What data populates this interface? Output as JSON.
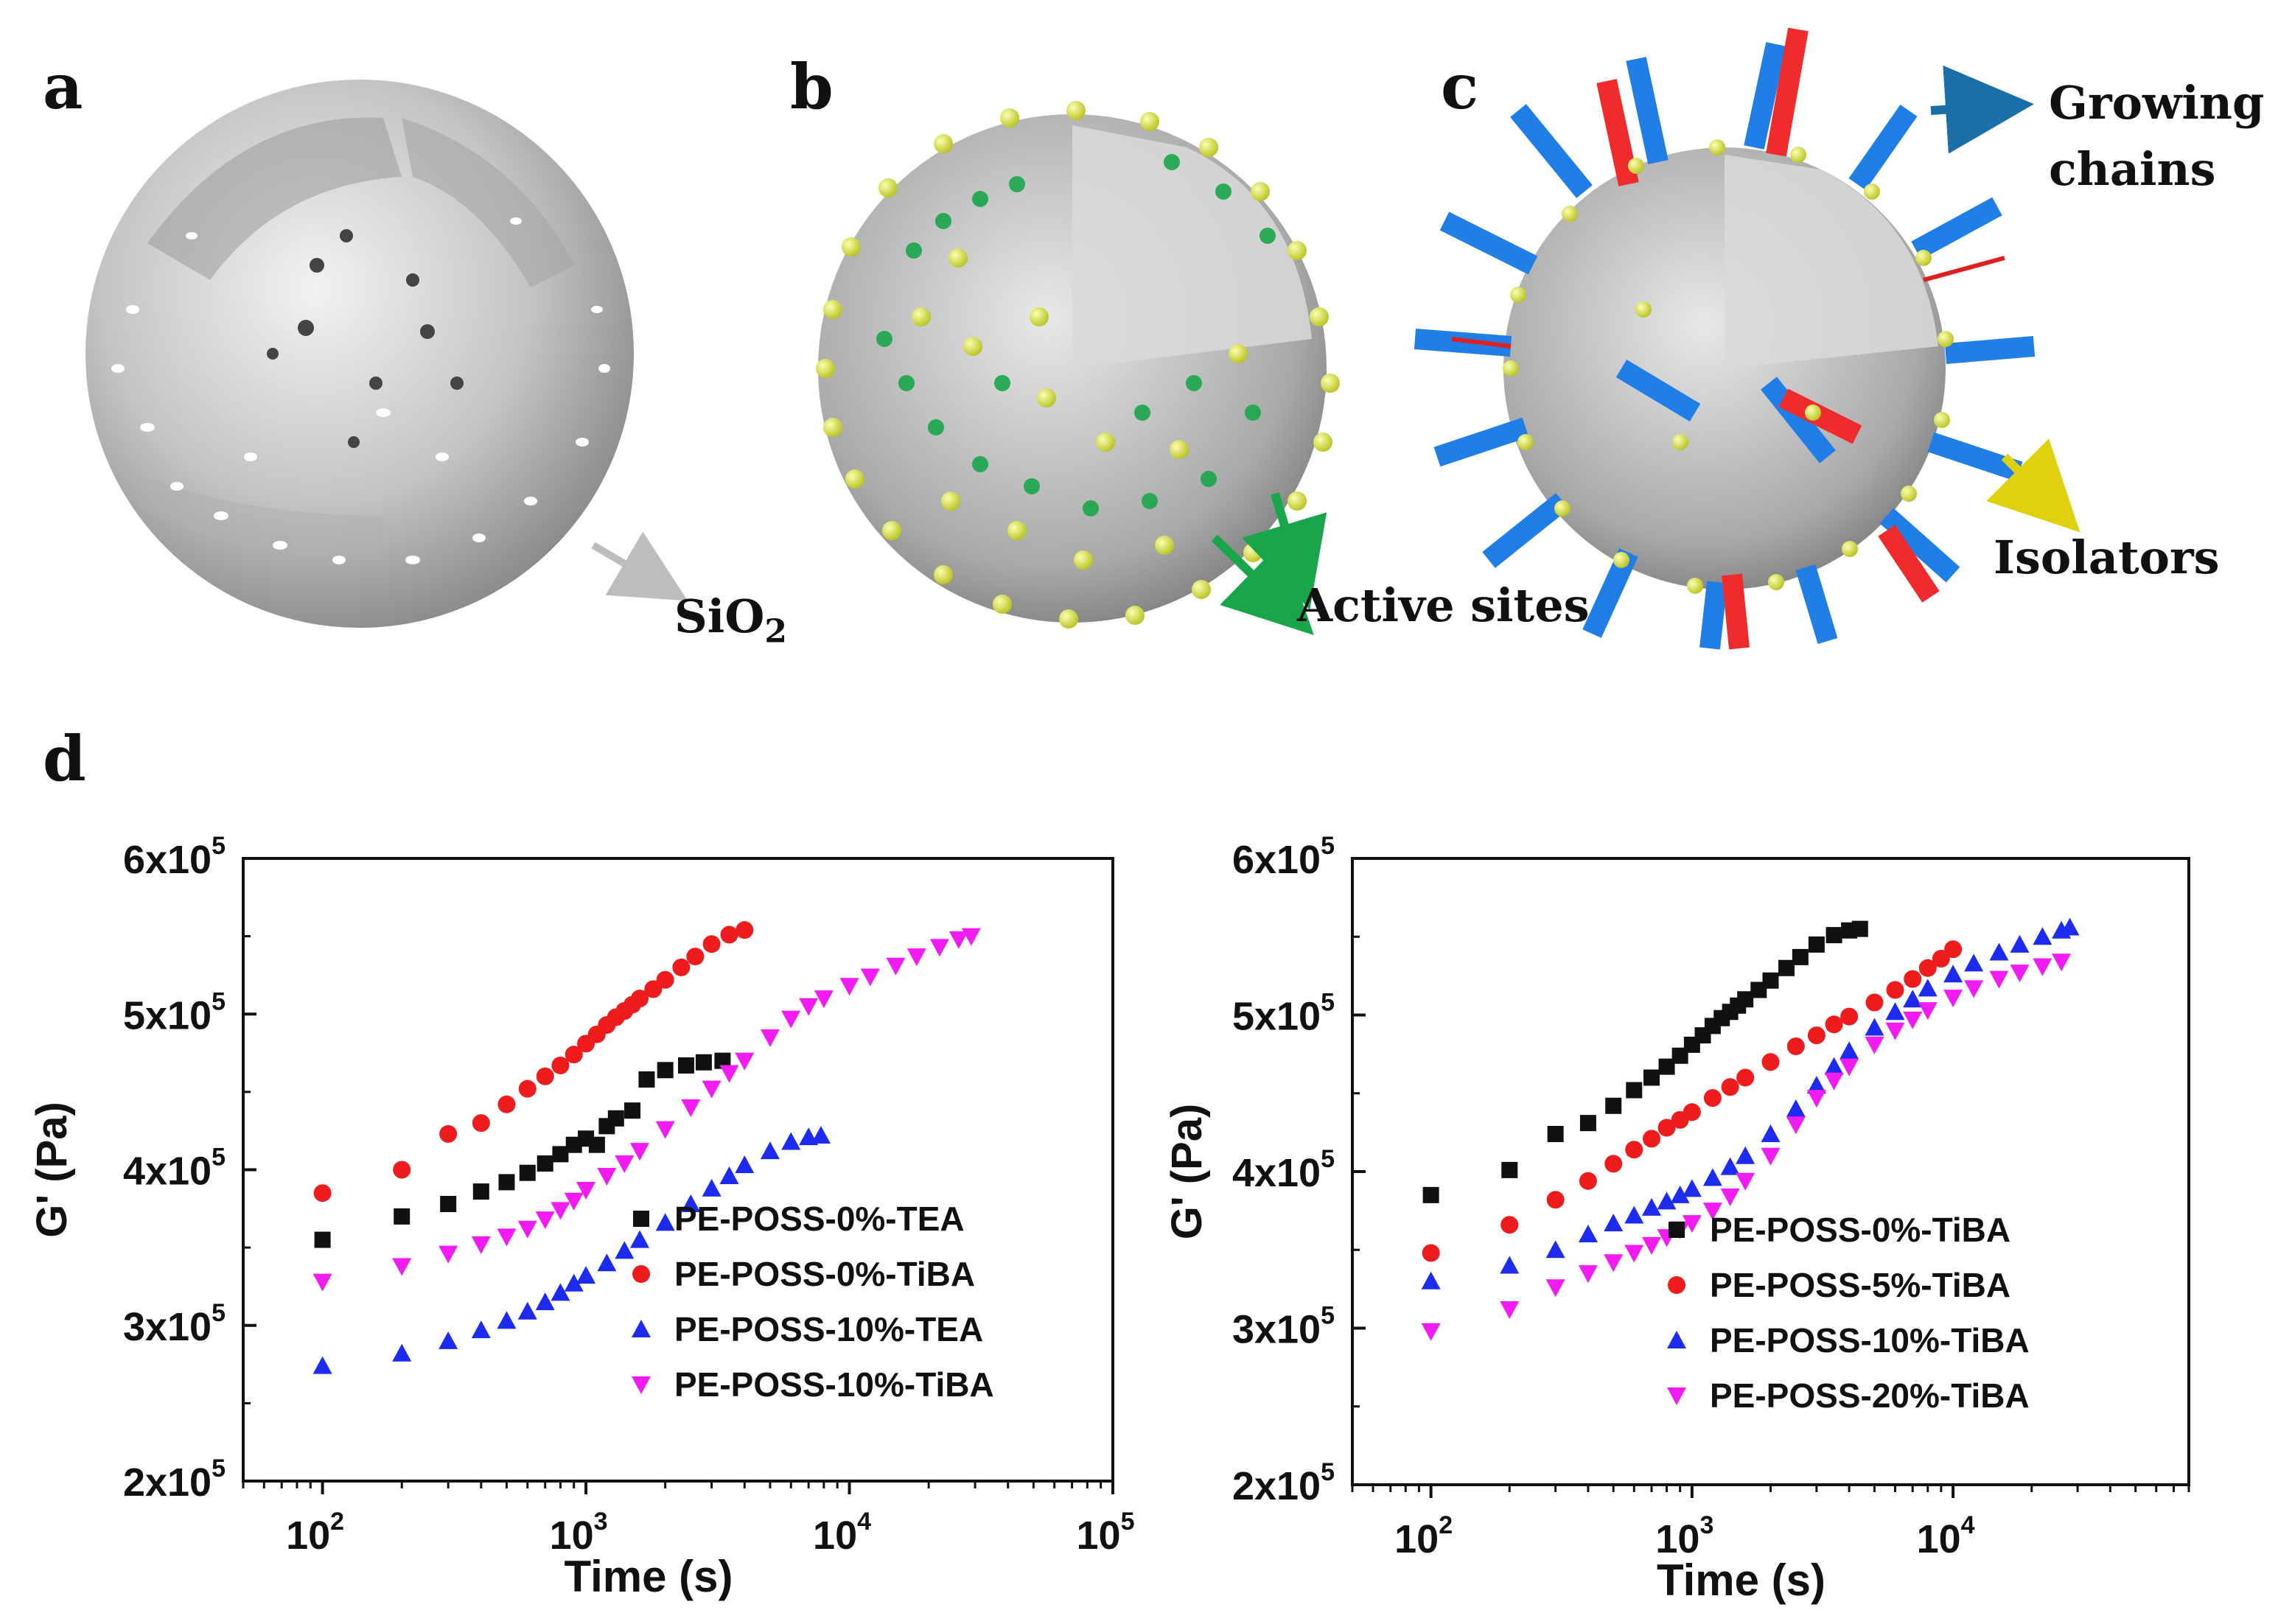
{
  "panels": {
    "a": {
      "letter": "a",
      "label": "SiO",
      "label_sub": "2"
    },
    "b": {
      "letter": "b",
      "label": "Active sites"
    },
    "c": {
      "letter": "c",
      "label_line1": "Growing",
      "label_line2": "chains",
      "label2": "Isolators"
    },
    "d": {
      "letter": "d"
    }
  },
  "colors": {
    "black": "#111111",
    "red": "#ee1c1c",
    "blue": "#1d2bf0",
    "magenta": "#f21bf2",
    "sphere": "#c9c9c9",
    "yellow_site": "#e2ee4a",
    "green_site": "#1aa35a",
    "chain_blue": "#1f7fe6",
    "chain_red": "#f02b2b"
  },
  "chart_data": [
    {
      "type": "scatter",
      "xscale": "log",
      "xlabel": "Time (s)",
      "ylabel": "G' (Pa)",
      "xlim": [
        50,
        100000
      ],
      "ylim": [
        200000,
        600000
      ],
      "x_ticks": [
        {
          "v": 100,
          "base": "10",
          "exp": "2"
        },
        {
          "v": 1000,
          "base": "10",
          "exp": "3"
        },
        {
          "v": 10000,
          "base": "10",
          "exp": "4"
        },
        {
          "v": 100000,
          "base": "10",
          "exp": "5"
        }
      ],
      "y_ticks": [
        {
          "v": 200000,
          "base": "2x10",
          "exp": "5"
        },
        {
          "v": 300000,
          "base": "3x10",
          "exp": "5"
        },
        {
          "v": 400000,
          "base": "4x10",
          "exp": "5"
        },
        {
          "v": 500000,
          "base": "5x10",
          "exp": "5"
        },
        {
          "v": 600000,
          "base": "6x10",
          "exp": "5"
        }
      ],
      "legend_position": "bottom-right",
      "series": [
        {
          "name": "PE-POSS-0%-TEA",
          "marker": "square",
          "color": "#111111",
          "x": [
            100,
            200,
            300,
            400,
            500,
            600,
            700,
            800,
            900,
            1000,
            1100,
            1200,
            1300,
            1500,
            1700,
            2000,
            2400,
            2800,
            3300
          ],
          "y": [
            355000,
            370000,
            378000,
            386000,
            392000,
            398000,
            404000,
            410000,
            416000,
            420000,
            416000,
            428000,
            433000,
            438000,
            458000,
            464000,
            467000,
            469000,
            470000
          ]
        },
        {
          "name": "PE-POSS-0%-TiBA",
          "marker": "circle",
          "color": "#ee1c1c",
          "x": [
            100,
            200,
            300,
            400,
            500,
            600,
            700,
            800,
            900,
            1000,
            1100,
            1200,
            1300,
            1400,
            1500,
            1600,
            1800,
            2000,
            2300,
            2600,
            3000,
            3500,
            4000
          ],
          "y": [
            385000,
            400000,
            423000,
            430000,
            442000,
            452000,
            460000,
            467000,
            474000,
            481000,
            487000,
            493000,
            498000,
            502000,
            506000,
            510000,
            516000,
            522000,
            530000,
            537000,
            545000,
            551000,
            554000
          ]
        },
        {
          "name": "PE-POSS-10%-TEA",
          "marker": "triangle-up",
          "color": "#1d2bf0",
          "x": [
            100,
            200,
            300,
            400,
            500,
            600,
            700,
            800,
            900,
            1000,
            1200,
            1400,
            1600,
            2000,
            2500,
            3000,
            3500,
            4000,
            5000,
            6000,
            7000,
            7800
          ],
          "y": [
            274000,
            282000,
            290000,
            297000,
            303000,
            309000,
            315000,
            321000,
            327000,
            332000,
            340000,
            348000,
            355000,
            366000,
            378000,
            388000,
            396000,
            403000,
            412000,
            418000,
            421000,
            422000
          ]
        },
        {
          "name": "PE-POSS-10%-TiBA",
          "marker": "triangle-down",
          "color": "#f21bf2",
          "x": [
            100,
            200,
            300,
            400,
            500,
            600,
            700,
            800,
            900,
            1000,
            1200,
            1400,
            1600,
            2000,
            2500,
            3000,
            3500,
            4000,
            5000,
            6000,
            7000,
            8000,
            10000,
            12000,
            15000,
            18000,
            22000,
            26000,
            29000
          ],
          "y": [
            328000,
            338000,
            346000,
            352000,
            357000,
            362000,
            368000,
            374000,
            380000,
            387000,
            396000,
            404000,
            412000,
            426000,
            440000,
            452000,
            462000,
            470000,
            485000,
            497000,
            505000,
            510000,
            518000,
            524000,
            531000,
            537000,
            543000,
            548000,
            550000
          ]
        }
      ]
    },
    {
      "type": "scatter",
      "xscale": "log",
      "xlabel": "Time (s)",
      "ylabel": "G' (Pa)",
      "xlim": [
        50,
        80000
      ],
      "ylim": [
        200000,
        600000
      ],
      "x_ticks": [
        {
          "v": 100,
          "base": "10",
          "exp": "2"
        },
        {
          "v": 1000,
          "base": "10",
          "exp": "3"
        },
        {
          "v": 10000,
          "base": "10",
          "exp": "4"
        }
      ],
      "y_ticks": [
        {
          "v": 200000,
          "base": "2x10",
          "exp": "5"
        },
        {
          "v": 300000,
          "base": "3x10",
          "exp": "5"
        },
        {
          "v": 400000,
          "base": "4x10",
          "exp": "5"
        },
        {
          "v": 500000,
          "base": "5x10",
          "exp": "5"
        },
        {
          "v": 600000,
          "base": "6x10",
          "exp": "5"
        }
      ],
      "legend_position": "bottom-right",
      "series": [
        {
          "name": "PE-POSS-0%-TiBA",
          "marker": "square",
          "color": "#111111",
          "x": [
            100,
            200,
            300,
            400,
            500,
            600,
            700,
            800,
            900,
            1000,
            1100,
            1200,
            1300,
            1400,
            1500,
            1600,
            1800,
            2000,
            2300,
            2600,
            3000,
            3500,
            4000,
            4400
          ],
          "y": [
            385000,
            401000,
            424000,
            431000,
            442000,
            452000,
            460000,
            467000,
            474000,
            481000,
            487000,
            493000,
            498000,
            502000,
            506000,
            510000,
            516000,
            522000,
            530000,
            537000,
            545000,
            551000,
            554000,
            555000
          ]
        },
        {
          "name": "PE-POSS-5%-TiBA",
          "marker": "circle",
          "color": "#ee1c1c",
          "x": [
            100,
            200,
            300,
            400,
            500,
            600,
            700,
            800,
            900,
            1000,
            1200,
            1400,
            1600,
            2000,
            2500,
            3000,
            3500,
            4000,
            5000,
            6000,
            7000,
            8000,
            9000,
            10000
          ],
          "y": [
            348000,
            366000,
            382000,
            394000,
            405000,
            414000,
            421000,
            428000,
            433000,
            438000,
            447000,
            454000,
            460000,
            470000,
            480000,
            487000,
            494000,
            499000,
            508000,
            516000,
            523000,
            530000,
            536000,
            542000
          ]
        },
        {
          "name": "PE-POSS-10%-TiBA",
          "marker": "triangle-up",
          "color": "#1d2bf0",
          "x": [
            100,
            200,
            300,
            400,
            500,
            600,
            700,
            800,
            900,
            1000,
            1200,
            1400,
            1600,
            2000,
            2500,
            3000,
            3500,
            4000,
            5000,
            6000,
            7000,
            8000,
            10000,
            12000,
            15000,
            18000,
            22000,
            26000,
            28000
          ],
          "y": [
            330000,
            340000,
            350000,
            360000,
            367000,
            372000,
            377000,
            381000,
            385000,
            389000,
            396000,
            403000,
            410000,
            424000,
            440000,
            455000,
            467000,
            477000,
            492000,
            502000,
            510000,
            517000,
            526000,
            533000,
            540000,
            545000,
            550000,
            554000,
            556000
          ]
        },
        {
          "name": "PE-POSS-20%-TiBA",
          "marker": "triangle-down",
          "color": "#f21bf2",
          "x": [
            100,
            200,
            300,
            400,
            500,
            600,
            700,
            800,
            900,
            1000,
            1200,
            1400,
            1600,
            2000,
            2500,
            3000,
            3500,
            4000,
            5000,
            6000,
            7000,
            8000,
            10000,
            12000,
            15000,
            18000,
            22000,
            26000
          ],
          "y": [
            298000,
            312000,
            326000,
            335000,
            342000,
            348000,
            353000,
            358000,
            363000,
            367000,
            375000,
            384000,
            394000,
            410000,
            430000,
            447000,
            458000,
            467000,
            481000,
            490000,
            497000,
            503000,
            511000,
            517000,
            523000,
            527000,
            531000,
            534000
          ]
        }
      ]
    }
  ]
}
